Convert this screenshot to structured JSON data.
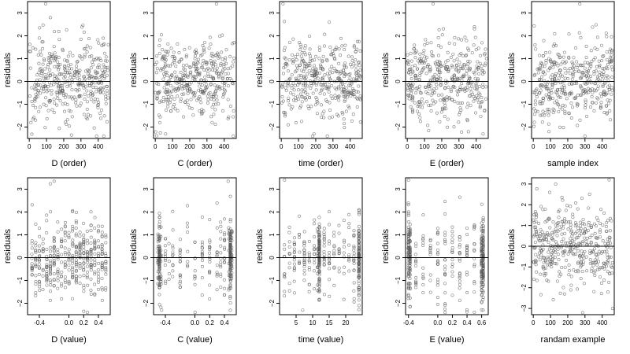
{
  "chart_data": [
    {
      "type": "scatter",
      "xlabel": "D (order)",
      "ylabel": "residuals",
      "xlim": [
        -10,
        470
      ],
      "ylim": [
        -2.5,
        3.5
      ],
      "xticks": [
        0,
        100,
        200,
        300,
        400
      ],
      "yticks": [
        -2,
        -1,
        0,
        1,
        2,
        3
      ],
      "hline": 0,
      "points": {
        "gen": "uniform",
        "n": 400,
        "seed": 1,
        "xrange": [
          0,
          460
        ],
        "mean": 0,
        "sd": 0.9
      },
      "extra_points": [
        [
          95,
          3.4
        ],
        [
          245,
          -2.35
        ],
        [
          60,
          2.35
        ]
      ]
    },
    {
      "type": "scatter",
      "xlabel": "C (order)",
      "ylabel": "residuals",
      "xlim": [
        -10,
        470
      ],
      "ylim": [
        -2.5,
        3.5
      ],
      "xticks": [
        0,
        100,
        200,
        300,
        400
      ],
      "yticks": [
        -2,
        -1,
        0,
        1,
        2,
        3
      ],
      "hline": 0,
      "points": {
        "gen": "uniform",
        "n": 400,
        "seed": 2,
        "xrange": [
          0,
          460
        ],
        "mean": 0.1,
        "sd": 0.85
      },
      "extra_points": [
        [
          355,
          3.4
        ],
        [
          60,
          -2.3
        ],
        [
          330,
          -1.8
        ]
      ]
    },
    {
      "type": "scatter",
      "xlabel": "time (order)",
      "ylabel": "residuals",
      "xlim": [
        -10,
        470
      ],
      "ylim": [
        -2.5,
        3.5
      ],
      "xticks": [
        0,
        100,
        200,
        300,
        400
      ],
      "yticks": [
        -2,
        -1,
        0,
        1,
        2,
        3
      ],
      "hline": 0,
      "points": {
        "gen": "uniform",
        "n": 400,
        "seed": 3,
        "xrange": [
          0,
          460
        ],
        "mean": 0.05,
        "sd": 0.9
      },
      "extra_points": [
        [
          10,
          3.4
        ],
        [
          190,
          -2.3
        ],
        [
          40,
          -1.9
        ]
      ]
    },
    {
      "type": "scatter",
      "xlabel": "E (order)",
      "ylabel": "residuals",
      "xlim": [
        -10,
        470
      ],
      "ylim": [
        -2.5,
        3.5
      ],
      "xticks": [
        0,
        100,
        200,
        300,
        400
      ],
      "yticks": [
        -2,
        -1,
        0,
        1,
        2,
        3
      ],
      "hline": 0,
      "points": {
        "gen": "uniform",
        "n": 400,
        "seed": 4,
        "xrange": [
          0,
          460
        ],
        "mean": 0.05,
        "sd": 0.9
      },
      "extra_points": [
        [
          150,
          3.4
        ],
        [
          440,
          -2.3
        ],
        [
          390,
          2.3
        ]
      ]
    },
    {
      "type": "scatter",
      "xlabel": "sample index",
      "ylabel": "residuals",
      "xlim": [
        -10,
        470
      ],
      "ylim": [
        -2.5,
        3.5
      ],
      "xticks": [
        0,
        100,
        200,
        300,
        400
      ],
      "yticks": [
        -2,
        -1,
        0,
        1,
        2,
        3
      ],
      "hline": 0,
      "points": {
        "gen": "uniform",
        "n": 400,
        "seed": 5,
        "xrange": [
          0,
          460
        ],
        "mean": 0,
        "sd": 0.9
      },
      "extra_points": [
        [
          270,
          3.4
        ],
        [
          300,
          -2.4
        ],
        [
          10,
          1.6
        ]
      ]
    },
    {
      "type": "scatter",
      "xlabel": "D (value)",
      "ylabel": "residuals",
      "xlim": [
        -0.56,
        0.56
      ],
      "ylim": [
        -2.5,
        3.5
      ],
      "xticks": [
        -0.4,
        0,
        0.2,
        0.4
      ],
      "xtick_labels": [
        "-0.4",
        "0.0",
        "0.2",
        "0.4"
      ],
      "yticks": [
        -2,
        -1,
        0,
        1,
        2,
        3
      ],
      "hline": 0,
      "points": {
        "gen": "discrete",
        "n": 400,
        "seed": 6,
        "levels": [
          -0.5,
          -0.45,
          -0.4,
          -0.35,
          -0.3,
          -0.25,
          -0.2,
          -0.15,
          -0.1,
          -0.05,
          0,
          0.05,
          0.1,
          0.15,
          0.2,
          0.25,
          0.3,
          0.35,
          0.4,
          0.45,
          0.5
        ],
        "mean": 0,
        "sd": 0.85
      },
      "extra_points": [
        [
          -0.2,
          3.35
        ],
        [
          0.2,
          -2.35
        ]
      ]
    },
    {
      "type": "scatter",
      "xlabel": "C (value)",
      "ylabel": "residuals",
      "xlim": [
        -0.56,
        0.56
      ],
      "ylim": [
        -2.5,
        3.5
      ],
      "xticks": [
        -0.4,
        0,
        0.2,
        0.4
      ],
      "xtick_labels": [
        "-0.4",
        "0.0",
        "0.2",
        "0.4"
      ],
      "yticks": [
        -2,
        -1,
        0,
        1,
        2,
        3
      ],
      "hline": 0,
      "points": {
        "gen": "discrete",
        "n": 400,
        "seed": 7,
        "levels": [
          -0.5,
          -0.48,
          -0.46,
          -0.4,
          -0.35,
          -0.3,
          -0.2,
          -0.1,
          0,
          0.1,
          0.2,
          0.3,
          0.35,
          0.4,
          0.46,
          0.48,
          0.5
        ],
        "heavy": [
          -0.48,
          0.48
        ],
        "mean": 0,
        "sd": 0.85
      },
      "extra_points": [
        [
          0.45,
          3.35
        ],
        [
          -0.45,
          -2.3
        ]
      ]
    },
    {
      "type": "scatter",
      "xlabel": "time (value)",
      "ylabel": "residuals",
      "xlim": [
        0,
        25
      ],
      "ylim": [
        -2.5,
        3.5
      ],
      "xticks": [
        5,
        10,
        15,
        20
      ],
      "yticks": [
        -2,
        -1,
        0,
        1,
        2,
        3
      ],
      "hline": 0,
      "points": {
        "gen": "discrete",
        "n": 400,
        "seed": 8,
        "levels": [
          1.5,
          3,
          4.5,
          6,
          7.5,
          9,
          10.5,
          11.5,
          12,
          13.5,
          15,
          16.5,
          18,
          19.5,
          21,
          22.5,
          24
        ],
        "heavy": [
          12,
          24
        ],
        "mean": 0.05,
        "sd": 0.85
      },
      "extra_points": [
        [
          1.5,
          3.4
        ],
        [
          7,
          -2.3
        ]
      ]
    },
    {
      "type": "scatter",
      "xlabel": "E (value)",
      "ylabel": "residuals",
      "xlim": [
        -0.44,
        0.69
      ],
      "ylim": [
        -2.5,
        3.5
      ],
      "xticks": [
        -0.4,
        0,
        0.2,
        0.4,
        0.6
      ],
      "xtick_labels": [
        "-0.4",
        "0.0",
        "0.2",
        "0.4",
        "0.6"
      ],
      "yticks": [
        -2,
        -1,
        0,
        1,
        2,
        3
      ],
      "hline": 0,
      "points": {
        "gen": "discrete",
        "n": 400,
        "seed": 9,
        "levels": [
          -0.4,
          -0.38,
          -0.3,
          -0.2,
          -0.1,
          0,
          0.1,
          0.2,
          0.3,
          0.4,
          0.5,
          0.6,
          0.62
        ],
        "heavy": [
          -0.4,
          -0.38,
          0.6,
          0.62
        ],
        "mean": 0.05,
        "sd": 0.9
      },
      "extra_points": [
        [
          -0.4,
          3.4
        ],
        [
          0.62,
          -2.3
        ]
      ]
    },
    {
      "type": "scatter",
      "xlabel": "randam example",
      "ylabel": "residuals",
      "xlim": [
        -10,
        470
      ],
      "ylim": [
        -3.3,
        3.3
      ],
      "xticks": [
        0,
        100,
        200,
        300,
        400
      ],
      "yticks": [
        -3,
        -2,
        -1,
        0,
        1,
        2,
        3
      ],
      "hline": 0,
      "points": {
        "gen": "uniform",
        "n": 400,
        "seed": 10,
        "xrange": [
          0,
          460
        ],
        "mean": 0,
        "sd": 1.0
      },
      "extra_points": [
        [
          130,
          3.0
        ],
        [
          440,
          3.2
        ],
        [
          460,
          -3.0
        ]
      ]
    }
  ]
}
